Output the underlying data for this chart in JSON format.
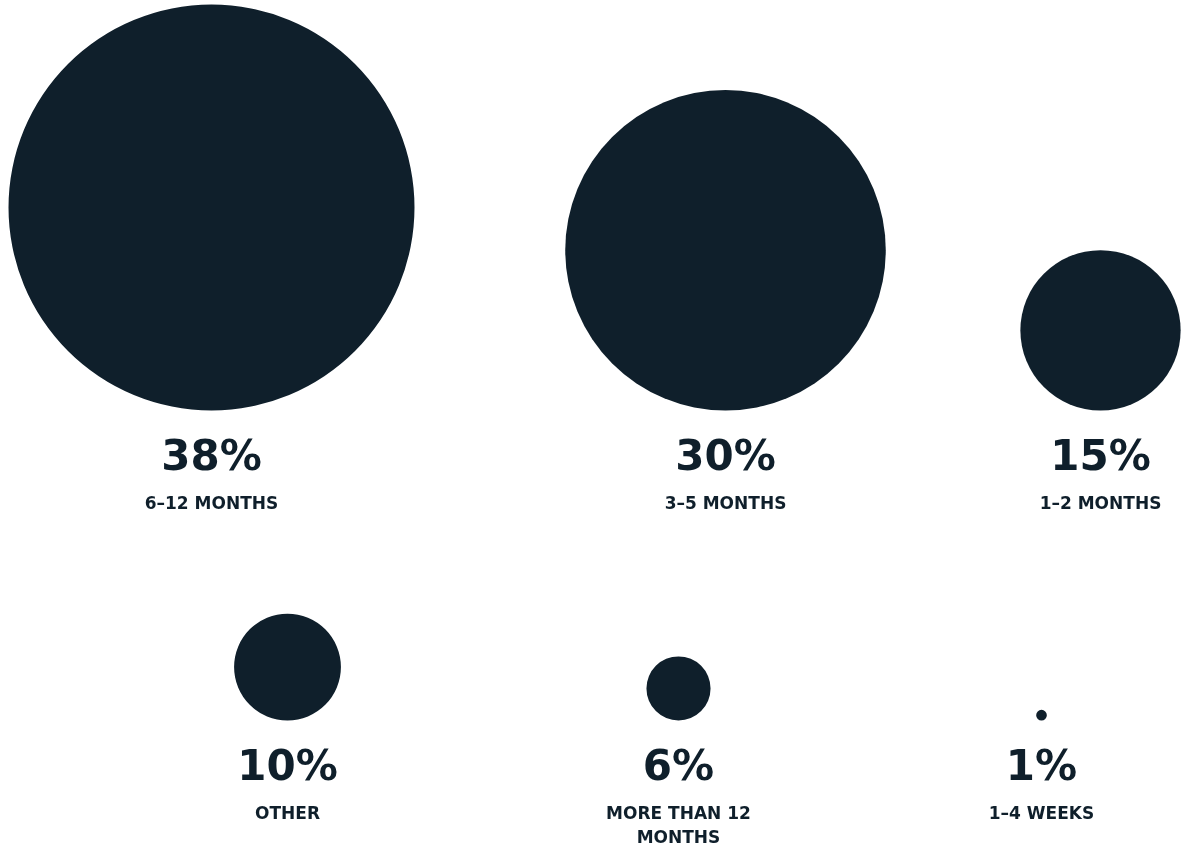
{
  "chart_data": {
    "type": "other",
    "categories": [
      "6–12 MONTHS",
      "3–5 MONTHS",
      "1–2 MONTHS",
      "OTHER",
      "MORE THAN 12 MONTHS",
      "1–4 WEEKS"
    ],
    "values": [
      38,
      30,
      15,
      10,
      6,
      1
    ],
    "value_labels": [
      "38%",
      "30%",
      "15%",
      "10%",
      "6%",
      "1%"
    ],
    "color": "#0f1f2b"
  }
}
